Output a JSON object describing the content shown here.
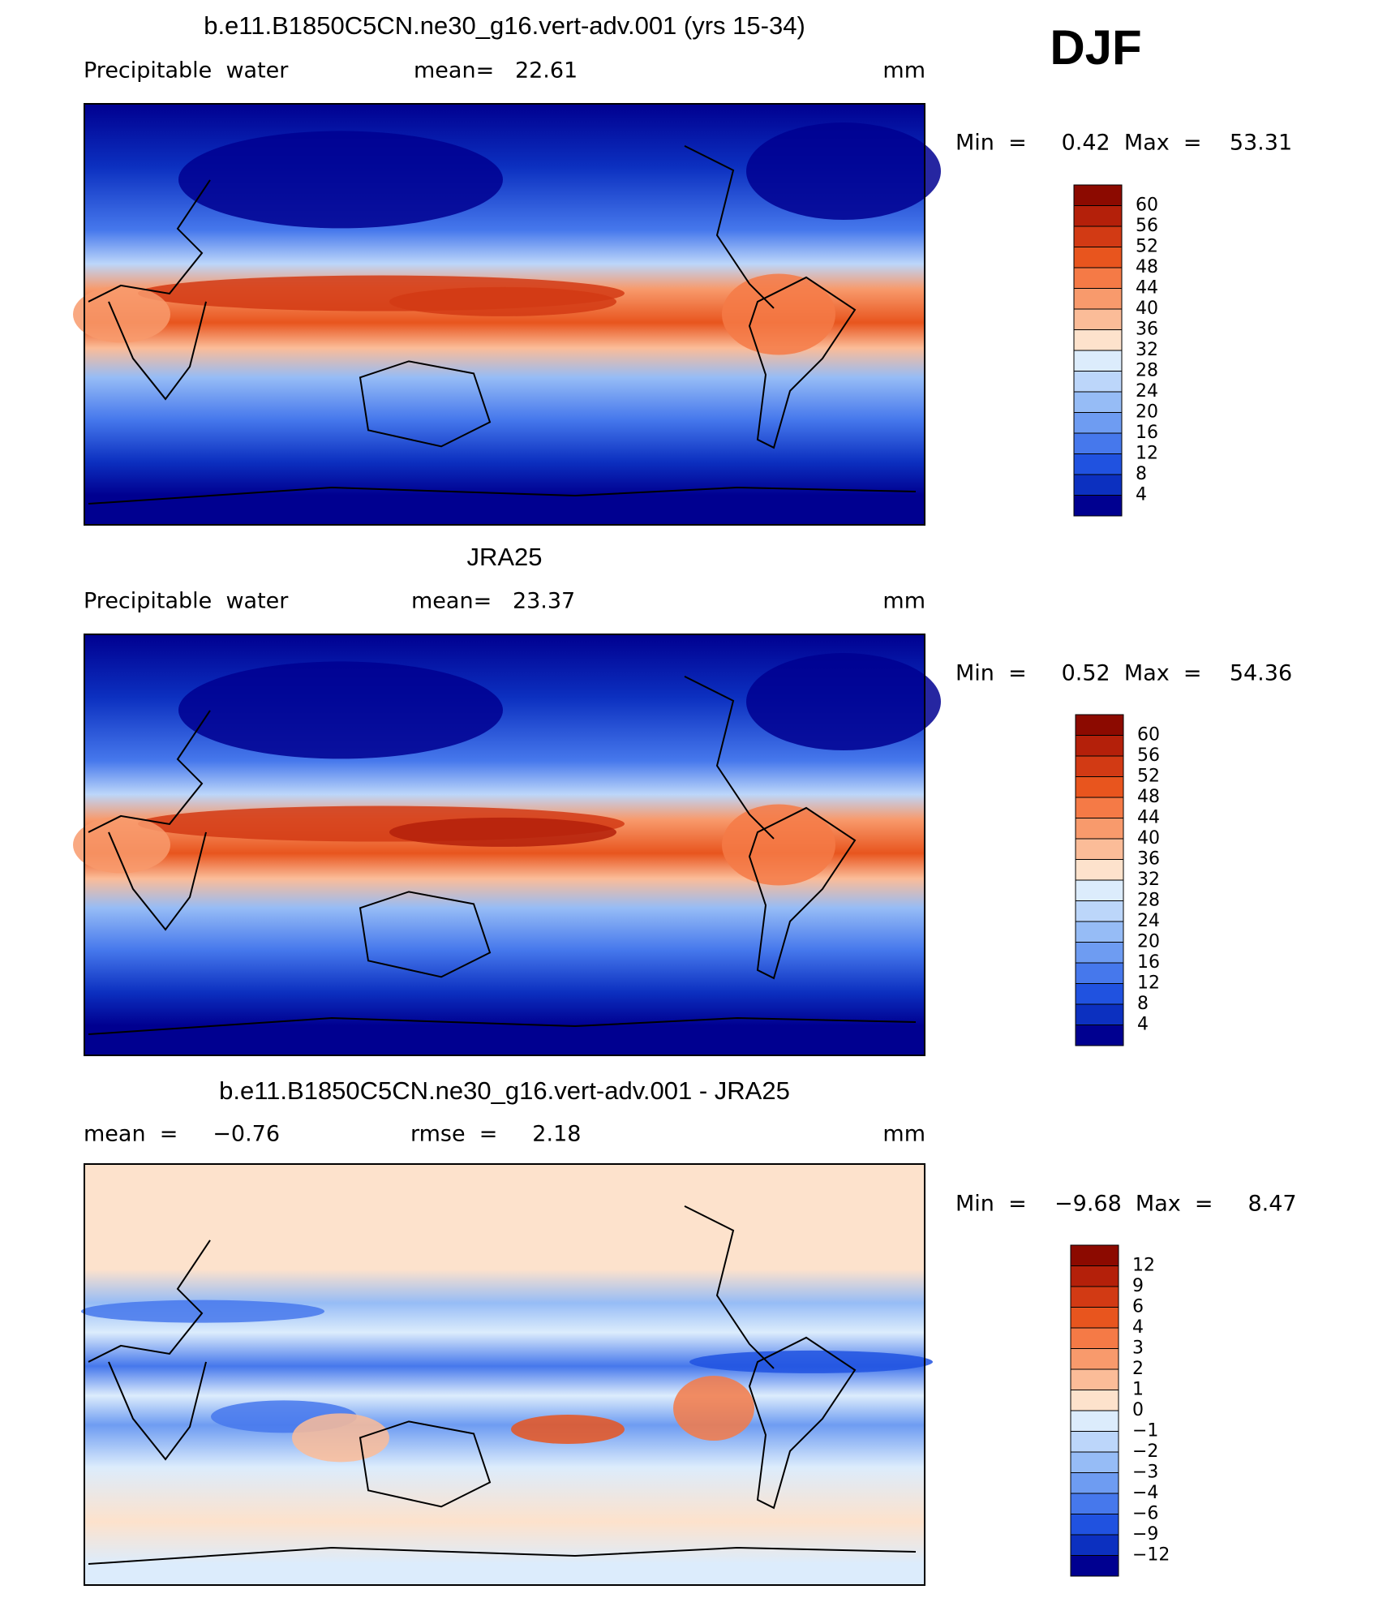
{
  "figure_label": "DJF",
  "panels": [
    {
      "title": "b.e11.B1850C5CN.ne30_g16.vert-adv.001 (yrs 15-34)",
      "left_label": "Precipitable  water",
      "center_label": "mean=   22.61",
      "right_label": "mm",
      "min_max": "Min  =     0.42  Max  =    53.31",
      "colorbar": {
        "labels": [
          "60",
          "56",
          "52",
          "48",
          "44",
          "40",
          "36",
          "32",
          "28",
          "24",
          "20",
          "16",
          "12",
          "8",
          "4"
        ],
        "colors": [
          "#8c0a00",
          "#b4200a",
          "#d23a14",
          "#e8551e",
          "#f57a46",
          "#f89a6c",
          "#fbbc98",
          "#fde2cc",
          "#dcecfc",
          "#bcd6fa",
          "#96bcf6",
          "#6e9cf2",
          "#4678ec",
          "#2052e0",
          "#0c30c0",
          "#000090"
        ]
      }
    },
    {
      "title": "JRA25",
      "left_label": "Precipitable  water",
      "center_label": "mean=   23.37",
      "right_label": "mm",
      "min_max": "Min  =     0.52  Max  =    54.36",
      "colorbar": {
        "labels": [
          "60",
          "56",
          "52",
          "48",
          "44",
          "40",
          "36",
          "32",
          "28",
          "24",
          "20",
          "16",
          "12",
          "8",
          "4"
        ],
        "colors": [
          "#8c0a00",
          "#b4200a",
          "#d23a14",
          "#e8551e",
          "#f57a46",
          "#f89a6c",
          "#fbbc98",
          "#fde2cc",
          "#dcecfc",
          "#bcd6fa",
          "#96bcf6",
          "#6e9cf2",
          "#4678ec",
          "#2052e0",
          "#0c30c0",
          "#000090"
        ]
      }
    },
    {
      "title": "b.e11.B1850C5CN.ne30_g16.vert-adv.001 - JRA25",
      "left_label": "mean  =     −0.76",
      "center_label": "rmse  =     2.18",
      "right_label": "mm",
      "min_max": "Min  =    −9.68  Max  =     8.47",
      "colorbar": {
        "labels": [
          "12",
          "9",
          "6",
          "4",
          "3",
          "2",
          "1",
          "0",
          "−1",
          "−2",
          "−3",
          "−4",
          "−6",
          "−9",
          "−12"
        ],
        "colors": [
          "#8c0a00",
          "#b4200a",
          "#d23a14",
          "#e8551e",
          "#f57a46",
          "#f89a6c",
          "#fbbc98",
          "#fde2cc",
          "#dcecfc",
          "#bcd6fa",
          "#96bcf6",
          "#6e9cf2",
          "#4678ec",
          "#2052e0",
          "#0c30c0",
          "#000090"
        ]
      }
    }
  ]
}
